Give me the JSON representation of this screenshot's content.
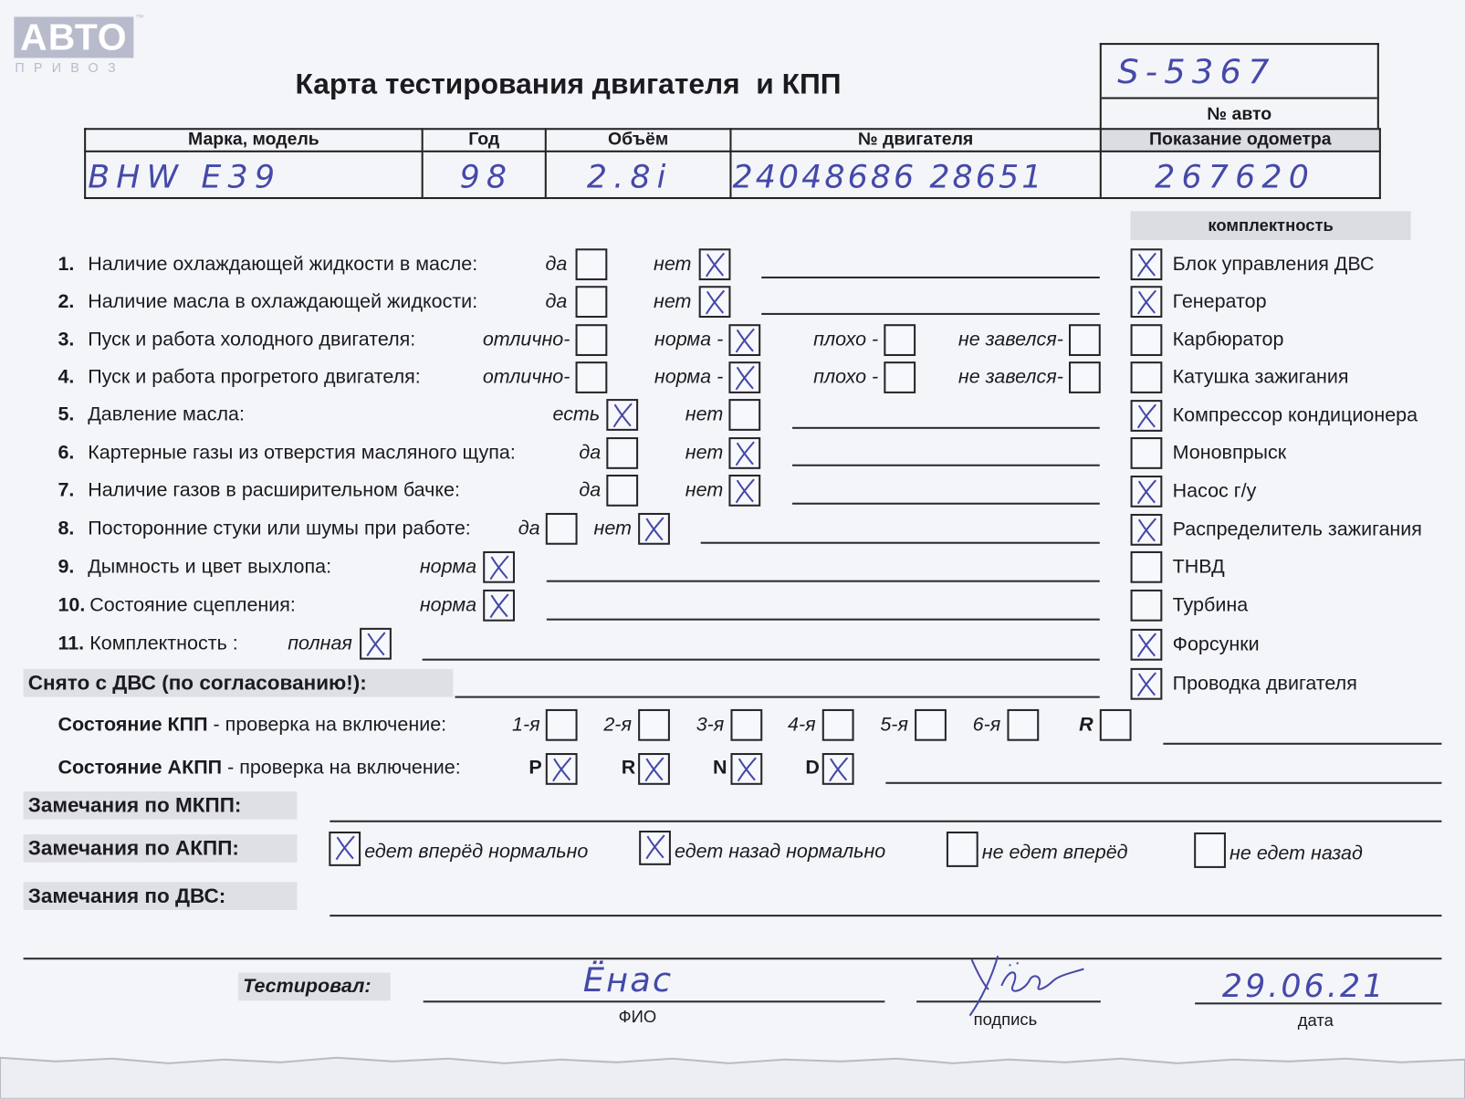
{
  "logo": {
    "text": "АВТО",
    "subtext": "ПРИВОЗ",
    "tm": "™"
  },
  "title": "Карта тестирования двигателя  и КПП",
  "vehicle": {
    "car_number": "S-5367",
    "car_number_label": "№ авто",
    "headers": [
      "Марка, модель",
      "Год",
      "Объём",
      "№ двигателя",
      "Показание одометра"
    ],
    "values": [
      "BHW E39",
      "98",
      "2.8i",
      "24048686 28651",
      "267620"
    ]
  },
  "checks": [
    {
      "num": "1.",
      "label": "Наличие охлаждающей жидкости в масле:",
      "options": [
        {
          "label": "да",
          "checked": false
        },
        {
          "label": "нет",
          "checked": true
        }
      ]
    },
    {
      "num": "2.",
      "label": "Наличие масла в охлаждающей жидкости:",
      "options": [
        {
          "label": "да",
          "checked": false
        },
        {
          "label": "нет",
          "checked": true
        }
      ]
    },
    {
      "num": "3.",
      "label": "Пуск и работа холодного двигателя:",
      "options": [
        {
          "label": "отлично-",
          "checked": false
        },
        {
          "label": "норма -",
          "checked": true
        },
        {
          "label": "плохо -",
          "checked": false
        },
        {
          "label": "не завелся-",
          "checked": false
        }
      ]
    },
    {
      "num": "4.",
      "label": "Пуск и работа прогретого двигателя:",
      "options": [
        {
          "label": "отлично-",
          "checked": false
        },
        {
          "label": "норма -",
          "checked": true
        },
        {
          "label": "плохо -",
          "checked": false
        },
        {
          "label": "не завелся-",
          "checked": false
        }
      ]
    },
    {
      "num": "5.",
      "label": "Давление масла:",
      "options": [
        {
          "label": "есть",
          "checked": true
        },
        {
          "label": "нет",
          "checked": false
        }
      ]
    },
    {
      "num": "6.",
      "label": "Картерные газы из отверстия масляного щупа:",
      "options": [
        {
          "label": "да",
          "checked": false
        },
        {
          "label": "нет",
          "checked": true
        }
      ]
    },
    {
      "num": "7.",
      "label": "Наличие газов в расширительном бачке:",
      "options": [
        {
          "label": "да",
          "checked": false
        },
        {
          "label": "нет",
          "checked": true
        }
      ]
    },
    {
      "num": "8.",
      "label": "Посторонние стуки или шумы при работе:",
      "options": [
        {
          "label": "да",
          "checked": false
        },
        {
          "label": "нет",
          "checked": true
        }
      ]
    },
    {
      "num": "9.",
      "label": "Дымность и цвет выхлопа:",
      "options": [
        {
          "label": "норма",
          "checked": true
        }
      ]
    },
    {
      "num": "10.",
      "label": "Состояние сцепления:",
      "options": [
        {
          "label": "норма",
          "checked": true
        }
      ]
    },
    {
      "num": "11.",
      "label": "Комплектность :",
      "options": [
        {
          "label": "полная",
          "checked": true
        }
      ]
    }
  ],
  "kit": {
    "title": "комплектность",
    "items": [
      {
        "label": "Блок управления ДВС",
        "checked": true
      },
      {
        "label": "Генератор",
        "checked": true
      },
      {
        "label": "Карбюратор",
        "checked": false
      },
      {
        "label": "Катушка зажигания",
        "checked": false
      },
      {
        "label": "Компрессор кондиционера",
        "checked": true
      },
      {
        "label": "Моновпрыск",
        "checked": false
      },
      {
        "label": "Насос г/у",
        "checked": true
      },
      {
        "label": "Распределитель зажигания",
        "checked": true
      },
      {
        "label": "ТНВД",
        "checked": false
      },
      {
        "label": "Турбина",
        "checked": false
      },
      {
        "label": "Форсунки",
        "checked": true
      },
      {
        "label": "Проводка двигателя",
        "checked": true
      }
    ]
  },
  "removed_label": "Снято с ДВС (по согласованию!):",
  "manual_gearbox": {
    "label_bold": "Состояние КПП",
    "label_rest": " - проверка на включение:",
    "gears": [
      {
        "label": "1-я",
        "checked": false
      },
      {
        "label": "2-я",
        "checked": false
      },
      {
        "label": "3-я",
        "checked": false
      },
      {
        "label": "4-я",
        "checked": false
      },
      {
        "label": "5-я",
        "checked": false
      },
      {
        "label": "6-я",
        "checked": false
      },
      {
        "label": "R",
        "checked": false
      }
    ]
  },
  "auto_gearbox": {
    "label_bold": "Состояние АКПП",
    "label_rest": " - проверка на включение:",
    "positions": [
      {
        "label": "P",
        "checked": true
      },
      {
        "label": "R",
        "checked": true
      },
      {
        "label": "N",
        "checked": true
      },
      {
        "label": "D",
        "checked": true
      }
    ]
  },
  "remarks": {
    "mkpp_label": "Замечания по МКПП:",
    "akpp_label": "Замечания по АКПП:",
    "akpp_options": [
      {
        "label": "едет вперёд нормально",
        "checked": true
      },
      {
        "label": "едет назад нормально",
        "checked": true
      },
      {
        "label": "не едет вперёд",
        "checked": false
      },
      {
        "label": "не едет назад",
        "checked": false
      }
    ],
    "dvs_label": "Замечания по ДВС:"
  },
  "tested": {
    "label": "Тестировал:",
    "name": "Ёнас",
    "signature": "Уёр",
    "date": "29.06.21",
    "name_caption": "ФИО",
    "signature_caption": "подпись",
    "date_caption": "дата"
  },
  "colors": {
    "ink": "#4549a8",
    "paper": "#f4f5f9",
    "section_bg": "#dfe0e5",
    "logo": "#b8bbcc"
  }
}
